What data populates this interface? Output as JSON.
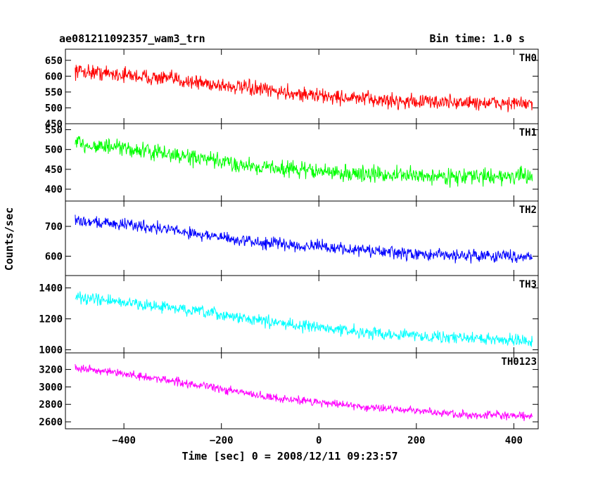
{
  "header": {
    "title": "ae081211092357_wam3_trn",
    "bin_time": "Bin time: 1.0 s"
  },
  "axes": {
    "ylabel": "Counts/sec",
    "xlabel": "Time [sec] 0 = 2008/12/11 09:23:57"
  },
  "chart_data": {
    "type": "line",
    "x_range": [
      -520,
      450
    ],
    "x_ticks": [
      -400,
      -200,
      0,
      200,
      400
    ],
    "x_tick_labels": [
      "−400",
      "−200",
      "0",
      "200",
      "400"
    ],
    "time_range": [
      -500,
      438
    ],
    "panels": [
      {
        "name": "TH0",
        "color": "#ff0000",
        "ylim": [
          450,
          685
        ],
        "y_ticks": [
          450,
          500,
          550,
          600,
          650
        ],
        "trend": [
          [
            -500,
            618
          ],
          [
            -300,
            590
          ],
          [
            -150,
            562
          ],
          [
            0,
            538
          ],
          [
            150,
            522
          ],
          [
            438,
            512
          ]
        ],
        "noise": 35
      },
      {
        "name": "TH1",
        "color": "#00ff00",
        "ylim": [
          370,
          565
        ],
        "y_ticks": [
          400,
          450,
          500,
          550
        ],
        "trend": [
          [
            -500,
            515
          ],
          [
            -350,
            495
          ],
          [
            -150,
            460
          ],
          [
            50,
            440
          ],
          [
            250,
            432
          ],
          [
            438,
            432
          ]
        ],
        "noise": 30
      },
      {
        "name": "TH2",
        "color": "#0000ff",
        "ylim": [
          535,
          785
        ],
        "y_ticks": [
          600,
          700
        ],
        "trend": [
          [
            -500,
            720
          ],
          [
            -350,
            700
          ],
          [
            -150,
            650
          ],
          [
            0,
            632
          ],
          [
            200,
            605
          ],
          [
            438,
            600
          ]
        ],
        "noise": 30
      },
      {
        "name": "TH3",
        "color": "#00ffff",
        "ylim": [
          980,
          1480
        ],
        "y_ticks": [
          1000,
          1200,
          1400
        ],
        "trend": [
          [
            -500,
            1340
          ],
          [
            -300,
            1270
          ],
          [
            -100,
            1180
          ],
          [
            100,
            1110
          ],
          [
            300,
            1075
          ],
          [
            438,
            1060
          ]
        ],
        "noise": 55
      },
      {
        "name": "TH0123",
        "color": "#ff00ff",
        "ylim": [
          2520,
          3390
        ],
        "y_ticks": [
          2600,
          2800,
          3000,
          3200
        ],
        "trend": [
          [
            -500,
            3220
          ],
          [
            -300,
            3070
          ],
          [
            -100,
            2880
          ],
          [
            100,
            2770
          ],
          [
            300,
            2680
          ],
          [
            438,
            2660
          ]
        ],
        "noise": 70
      }
    ]
  }
}
